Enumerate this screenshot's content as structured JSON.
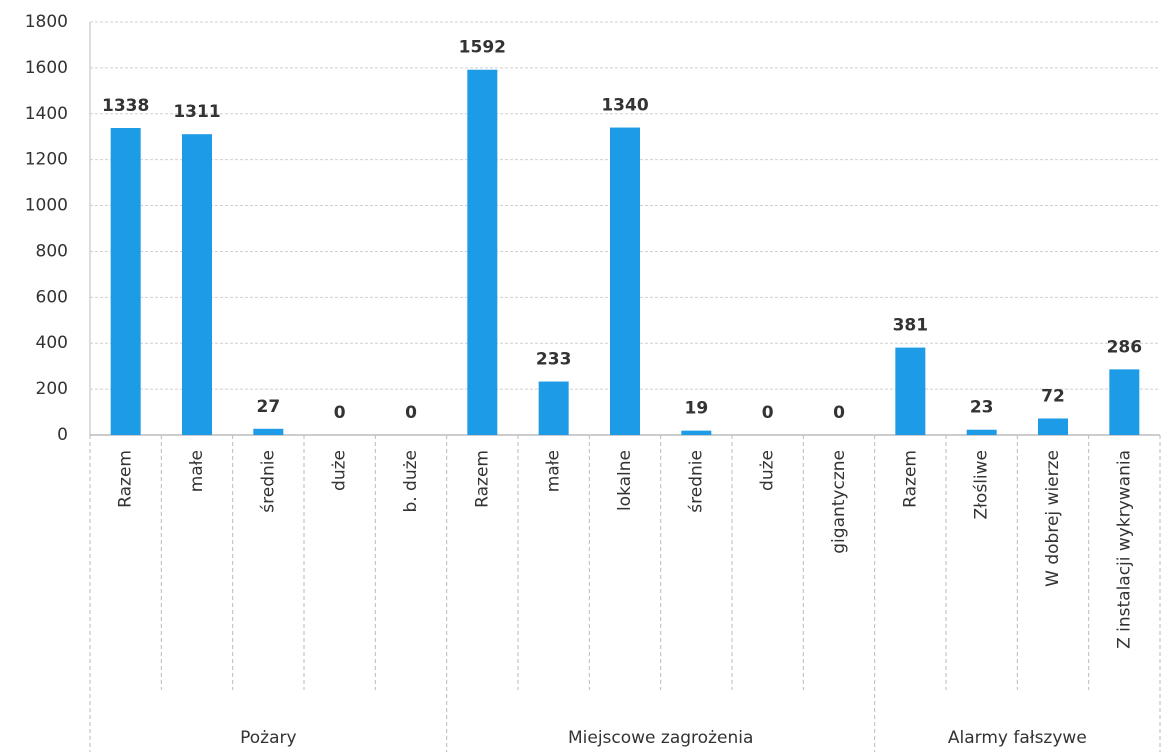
{
  "chart_data": {
    "type": "bar",
    "color": "#1e9be6",
    "groups": [
      {
        "name": "Pożary",
        "categories": [
          "Razem",
          "małe",
          "średnie",
          "duże",
          "b. duże"
        ],
        "values": [
          1338,
          1311,
          27,
          0,
          0
        ]
      },
      {
        "name": "Miejscowe zagrożenia",
        "categories": [
          "Razem",
          "małe",
          "lokalne",
          "średnie",
          "duże",
          "gigantyczne"
        ],
        "values": [
          1592,
          233,
          1340,
          19,
          0,
          0
        ]
      },
      {
        "name": "Alarmy fałszywe",
        "categories": [
          "Razem",
          "Złośliwe",
          "W dobrej wierze",
          "Z instalacji wykrywania"
        ],
        "values": [
          381,
          23,
          72,
          286
        ]
      }
    ],
    "ylim": [
      0,
      1800
    ],
    "yticks": [
      0,
      200,
      400,
      600,
      800,
      1000,
      1200,
      1400,
      1600,
      1800
    ],
    "grid": true
  }
}
